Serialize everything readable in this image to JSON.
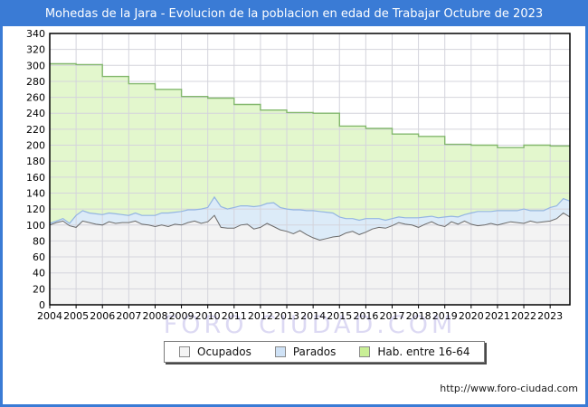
{
  "header": {
    "title": "Mohedas de la Jara - Evolucion de la poblacion en edad de Trabajar Octubre de 2023",
    "bg_color": "#3a7bd5",
    "text_color": "#ffffff"
  },
  "watermark": {
    "text": "FORO CIUDAD.COM",
    "color": "#9c93dd"
  },
  "footer": {
    "url": "http://www.foro-ciudad.com"
  },
  "legend": {
    "items": [
      {
        "label": "Ocupados",
        "fill": "#f4f4f4",
        "stroke": "#8a8a8a"
      },
      {
        "label": "Parados",
        "fill": "#cfe2f6",
        "stroke": "#8a8a8a"
      },
      {
        "label": "Hab. entre 16-64",
        "fill": "#c9ef96",
        "stroke": "#8a8a8a"
      }
    ]
  },
  "chart_data": {
    "type": "area",
    "title": "Mohedas de la Jara - Evolucion de la poblacion en edad de Trabajar Octubre de 2023",
    "x_start": 2004,
    "x_end": 2023.75,
    "x_step": 0.25,
    "ylim": [
      0,
      340
    ],
    "ytick_step": 20,
    "grid": true,
    "legend_position": "bottom",
    "x_tick_labels": [
      "2004",
      "2005",
      "2006",
      "2007",
      "2008",
      "2009",
      "2010",
      "2011",
      "2012",
      "2013",
      "2014",
      "2015",
      "2016",
      "2017",
      "2018",
      "2019",
      "2020",
      "2021",
      "2022",
      "2023"
    ],
    "colors": {
      "grid": "#d4d4dc",
      "plot_border": "#000000",
      "ocupados_fill": "#f3f3f3",
      "ocupados_stroke": "#6a6a6a",
      "parados_fill": "#dcebf8",
      "parados_stroke": "#94b5e2",
      "hab_fill": "#e3f7cd",
      "hab_stroke": "#83b86d"
    },
    "series": [
      {
        "name": "Ocupados",
        "values": [
          100,
          103,
          105,
          99,
          97,
          105,
          103,
          101,
          100,
          104,
          102,
          103,
          103,
          105,
          101,
          100,
          98,
          100,
          98,
          101,
          100,
          103,
          105,
          102,
          104,
          112,
          97,
          96,
          96,
          100,
          101,
          95,
          97,
          102,
          98,
          94,
          92,
          89,
          93,
          88,
          84,
          81,
          83,
          85,
          86,
          90,
          92,
          88,
          91,
          95,
          97,
          96,
          99,
          103,
          101,
          100,
          97,
          101,
          104,
          100,
          98,
          104,
          101,
          105,
          101,
          99,
          100,
          102,
          100,
          102,
          104,
          103,
          102,
          105,
          103,
          104,
          105,
          108,
          115,
          110
        ]
      },
      {
        "name": "Parados",
        "stacked_on": "Ocupados",
        "values": [
          2,
          2,
          3,
          3,
          15,
          13,
          12,
          13,
          13,
          11,
          12,
          10,
          9,
          10,
          11,
          12,
          14,
          15,
          17,
          15,
          17,
          16,
          14,
          18,
          18,
          23,
          26,
          24,
          26,
          24,
          23,
          28,
          27,
          25,
          30,
          28,
          28,
          30,
          26,
          30,
          34,
          36,
          33,
          30,
          24,
          18,
          16,
          18,
          17,
          13,
          11,
          10,
          9,
          7,
          8,
          9,
          12,
          9,
          7,
          9,
          12,
          7,
          9,
          8,
          14,
          18,
          17,
          15,
          18,
          16,
          14,
          15,
          18,
          13,
          15,
          14,
          17,
          16,
          18,
          20
        ]
      },
      {
        "name": "Hab. entre 16-64",
        "step": "yearly",
        "yearly_values": [
          302,
          301,
          286,
          277,
          270,
          261,
          259,
          251,
          244,
          241,
          240,
          224,
          221,
          214,
          211,
          201,
          200,
          197,
          200,
          199
        ]
      }
    ]
  }
}
